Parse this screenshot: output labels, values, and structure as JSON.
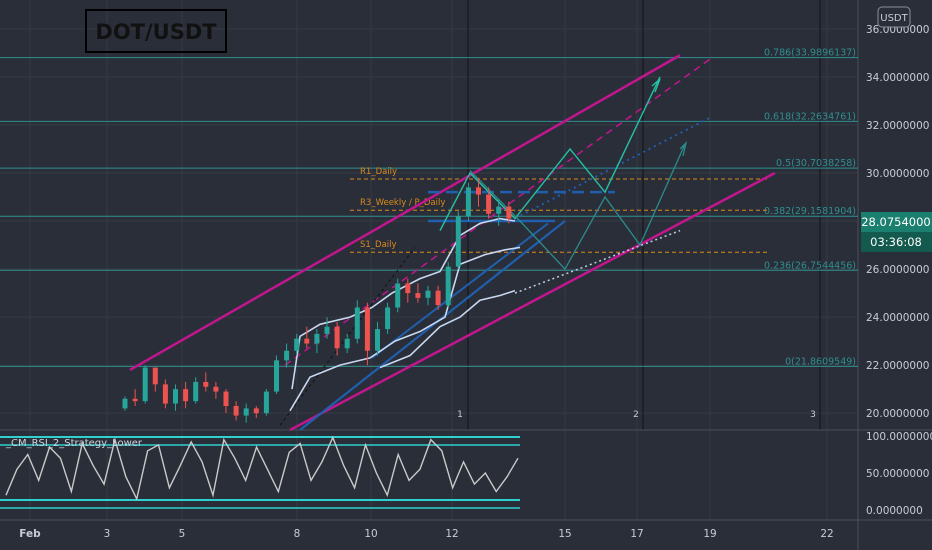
{
  "symbol": "DOT/USDT",
  "currency_button": "USDT",
  "current_price": "28.0754000",
  "countdown": "03:36:08",
  "indicator_title": "_CM_RSI_2_Strategy_Lower",
  "colors": {
    "background": "#2a2e39",
    "bull": "#26a69a",
    "bear": "#ef5350",
    "channel": "#c2168e",
    "fib": "#2f8f8f",
    "sr": "#d98a1c",
    "ema": "#c8d8f0",
    "trend": "#1f5fae",
    "projection": "#27c0a6",
    "rsi": "#c9c9c9",
    "rsi_band": "#2ed0d0"
  },
  "price_axis": {
    "labels": [
      "36.0000000",
      "34.0000000",
      "32.0000000",
      "30.0000000",
      "28.0000000",
      "26.0000000",
      "24.0000000",
      "22.0000000",
      "20.0000000"
    ]
  },
  "rsi_axis": {
    "labels": [
      "100.0000000",
      "50.0000000",
      "0.0000000"
    ]
  },
  "time_axis": {
    "labels": [
      "Feb",
      "3",
      "5",
      "8",
      "10",
      "12",
      "15",
      "17",
      "19",
      "22"
    ]
  },
  "fib_levels": [
    {
      "label": "0.786(33.9896137)",
      "value": 34.8
    },
    {
      "label": "0.618(32.2634761)",
      "value": 32.15
    },
    {
      "label": "0.5(30.7038258)",
      "value": 30.2
    },
    {
      "label": "0.382(29.1581904)",
      "value": 28.2
    },
    {
      "label": "0.236(26.7544456)",
      "value": 25.95
    },
    {
      "label": "0(21.8609549)",
      "value": 21.95
    }
  ],
  "sr_levels": [
    {
      "label": "R1_Daily",
      "value": 29.75
    },
    {
      "label": "R3_Weekly / P_Daily",
      "value": 28.45
    },
    {
      "label": "S1_Daily",
      "value": 26.7
    }
  ],
  "session_markers": [
    "1",
    "2",
    "3"
  ],
  "chart_data": {
    "type": "candlestick",
    "title": "DOT/USDT",
    "y_range": [
      19.3,
      37.2
    ],
    "x_labels": [
      "Feb",
      "3",
      "5",
      "8",
      "10",
      "12",
      "15",
      "17",
      "19",
      "22"
    ],
    "candles": [
      [
        20.2,
        20.7,
        20.1,
        20.6
      ],
      [
        20.6,
        21.0,
        20.3,
        20.5
      ],
      [
        20.5,
        22.0,
        20.4,
        21.9
      ],
      [
        21.9,
        21.9,
        20.9,
        21.2
      ],
      [
        21.2,
        21.4,
        20.2,
        20.4
      ],
      [
        20.4,
        21.2,
        20.1,
        21.0
      ],
      [
        21.0,
        21.3,
        20.2,
        20.5
      ],
      [
        20.5,
        21.5,
        20.4,
        21.3
      ],
      [
        21.3,
        21.7,
        20.9,
        21.1
      ],
      [
        21.1,
        21.3,
        20.6,
        20.9
      ],
      [
        20.9,
        21.0,
        20.0,
        20.3
      ],
      [
        20.3,
        20.5,
        19.7,
        19.9
      ],
      [
        19.9,
        20.4,
        19.6,
        20.2
      ],
      [
        20.2,
        20.3,
        19.8,
        20.0
      ],
      [
        20.0,
        21.0,
        19.9,
        20.9
      ],
      [
        20.9,
        22.4,
        20.8,
        22.2
      ],
      [
        22.2,
        22.9,
        21.9,
        22.6
      ],
      [
        22.6,
        23.3,
        22.4,
        23.1
      ],
      [
        23.1,
        23.6,
        22.7,
        22.9
      ],
      [
        22.9,
        23.5,
        22.5,
        23.3
      ],
      [
        23.3,
        24.0,
        23.1,
        23.6
      ],
      [
        23.6,
        23.8,
        22.4,
        22.7
      ],
      [
        22.7,
        23.3,
        22.5,
        23.1
      ],
      [
        23.1,
        24.7,
        22.9,
        24.4
      ],
      [
        24.4,
        24.6,
        22.0,
        22.6
      ],
      [
        22.6,
        23.8,
        22.4,
        23.5
      ],
      [
        23.5,
        24.6,
        23.3,
        24.4
      ],
      [
        24.4,
        25.6,
        24.2,
        25.4
      ],
      [
        25.4,
        25.6,
        24.6,
        25.0
      ],
      [
        25.0,
        25.4,
        24.6,
        24.8
      ],
      [
        24.8,
        25.3,
        24.5,
        25.1
      ],
      [
        25.1,
        25.3,
        24.3,
        24.5
      ],
      [
        24.5,
        26.3,
        24.4,
        26.1
      ],
      [
        26.1,
        28.4,
        26.0,
        28.2
      ],
      [
        28.2,
        29.6,
        28.0,
        29.4
      ],
      [
        29.4,
        29.8,
        28.6,
        29.1
      ],
      [
        29.1,
        29.4,
        28.1,
        28.3
      ],
      [
        28.3,
        28.9,
        27.8,
        28.6
      ],
      [
        28.6,
        28.8,
        27.9,
        28.1
      ]
    ],
    "rsi": [
      20,
      55,
      75,
      40,
      85,
      70,
      25,
      90,
      60,
      35,
      95,
      45,
      15,
      80,
      88,
      30,
      60,
      92,
      65,
      20,
      95,
      70,
      40,
      85,
      55,
      25,
      78,
      90,
      40,
      65,
      98,
      60,
      30,
      88,
      50,
      20,
      75,
      40,
      55,
      95,
      80,
      30,
      65,
      35,
      50,
      25,
      45,
      70
    ]
  }
}
